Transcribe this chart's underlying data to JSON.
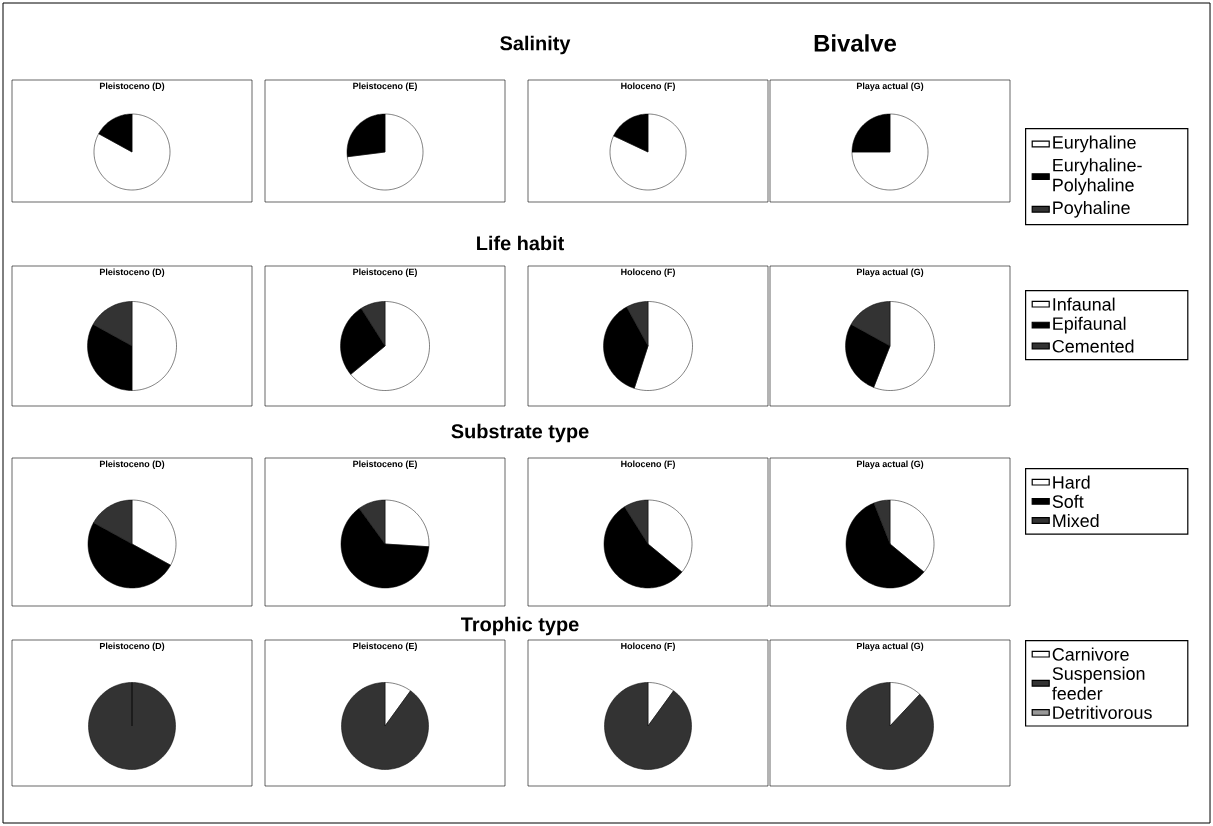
{
  "chart_data": [
    {
      "type": "pie",
      "title": "Pleistoceno (D)",
      "categories": [
        null,
        null,
        null
      ],
      "values": [
        83,
        17,
        0
      ],
      "colors": [
        "#ffffff",
        "#000000",
        "#333333"
      ],
      "annotations": [
        "Salinity",
        "Bivalve"
      ]
    },
    {
      "type": "pie",
      "title": "Pleistoceno (E)",
      "categories": [
        null,
        null,
        null
      ],
      "values": [
        73,
        27,
        0
      ],
      "colors": [
        "#ffffff",
        "#000000",
        "#333333"
      ]
    },
    {
      "type": "pie",
      "title": "Holoceno (F)",
      "categories": [
        null,
        null,
        null
      ],
      "values": [
        82,
        18,
        0
      ],
      "colors": [
        "#ffffff",
        "#000000",
        "#333333"
      ]
    },
    {
      "type": "pie",
      "title": "Playa actual (G)",
      "categories": [
        "Euryhaline",
        "Euryhaline-Polyhaline",
        "Poyhaline"
      ],
      "values": [
        75,
        25,
        0
      ],
      "colors": [
        "#ffffff",
        "#000000",
        "#333333"
      ],
      "legend": "right"
    },
    {
      "type": "pie",
      "title": "Pleistoceno (D)",
      "categories": [
        null,
        null,
        null
      ],
      "values": [
        50,
        33,
        17
      ],
      "colors": [
        "#ffffff",
        "#000000",
        "#333333"
      ],
      "annotations": [
        "Life habit"
      ]
    },
    {
      "type": "pie",
      "title": "Pleistoceno (E)",
      "categories": [
        null,
        null,
        null
      ],
      "values": [
        64,
        27,
        9
      ],
      "colors": [
        "#ffffff",
        "#000000",
        "#333333"
      ]
    },
    {
      "type": "pie",
      "title": "Holoceno (F)",
      "categories": [
        null,
        null,
        null
      ],
      "values": [
        55,
        37,
        8
      ],
      "colors": [
        "#ffffff",
        "#000000",
        "#333333"
      ]
    },
    {
      "type": "pie",
      "title": "Playa actual (G)",
      "categories": [
        "Infaunal",
        "Epifaunal",
        "Cemented"
      ],
      "values": [
        56,
        27,
        17
      ],
      "colors": [
        "#ffffff",
        "#000000",
        "#333333"
      ],
      "legend": "right"
    },
    {
      "type": "pie",
      "title": "Pleistoceno (D)",
      "categories": [
        null,
        null,
        null
      ],
      "values": [
        33,
        50,
        17
      ],
      "colors": [
        "#ffffff",
        "#000000",
        "#333333"
      ],
      "annotations": [
        "Substrate type"
      ]
    },
    {
      "type": "pie",
      "title": "Pleistoceno (E)",
      "categories": [
        null,
        null,
        null
      ],
      "values": [
        26,
        64,
        10
      ],
      "colors": [
        "#ffffff",
        "#000000",
        "#333333"
      ]
    },
    {
      "type": "pie",
      "title": "Holoceno (F)",
      "categories": [
        null,
        null,
        null
      ],
      "values": [
        36,
        55,
        9
      ],
      "colors": [
        "#ffffff",
        "#000000",
        "#333333"
      ]
    },
    {
      "type": "pie",
      "title": "Playa actual (G)",
      "categories": [
        "Hard",
        "Soft",
        "Mixed"
      ],
      "values": [
        36,
        58,
        6
      ],
      "colors": [
        "#ffffff",
        "#000000",
        "#333333"
      ],
      "legend": "right"
    },
    {
      "type": "pie",
      "title": "Pleistoceno (D)",
      "categories": [
        null,
        null,
        null
      ],
      "values": [
        0,
        100,
        0
      ],
      "colors": [
        "#ffffff",
        "#333333",
        "#999999"
      ],
      "annotations": [
        "Trophic type"
      ]
    },
    {
      "type": "pie",
      "title": "Pleistoceno (E)",
      "categories": [
        null,
        null,
        null
      ],
      "values": [
        10,
        90,
        0
      ],
      "colors": [
        "#ffffff",
        "#333333",
        "#999999"
      ]
    },
    {
      "type": "pie",
      "title": "Holoceno (F)",
      "categories": [
        null,
        null,
        null
      ],
      "values": [
        10,
        90,
        0
      ],
      "colors": [
        "#ffffff",
        "#333333",
        "#999999"
      ]
    },
    {
      "type": "pie",
      "title": "Playa actual (G)",
      "categories": [
        "Carnivore",
        "Suspension feeder",
        "Detritivorous"
      ],
      "values": [
        12,
        88,
        0
      ],
      "colors": [
        "#ffffff",
        "#333333",
        "#999999"
      ],
      "legend": "right"
    }
  ]
}
